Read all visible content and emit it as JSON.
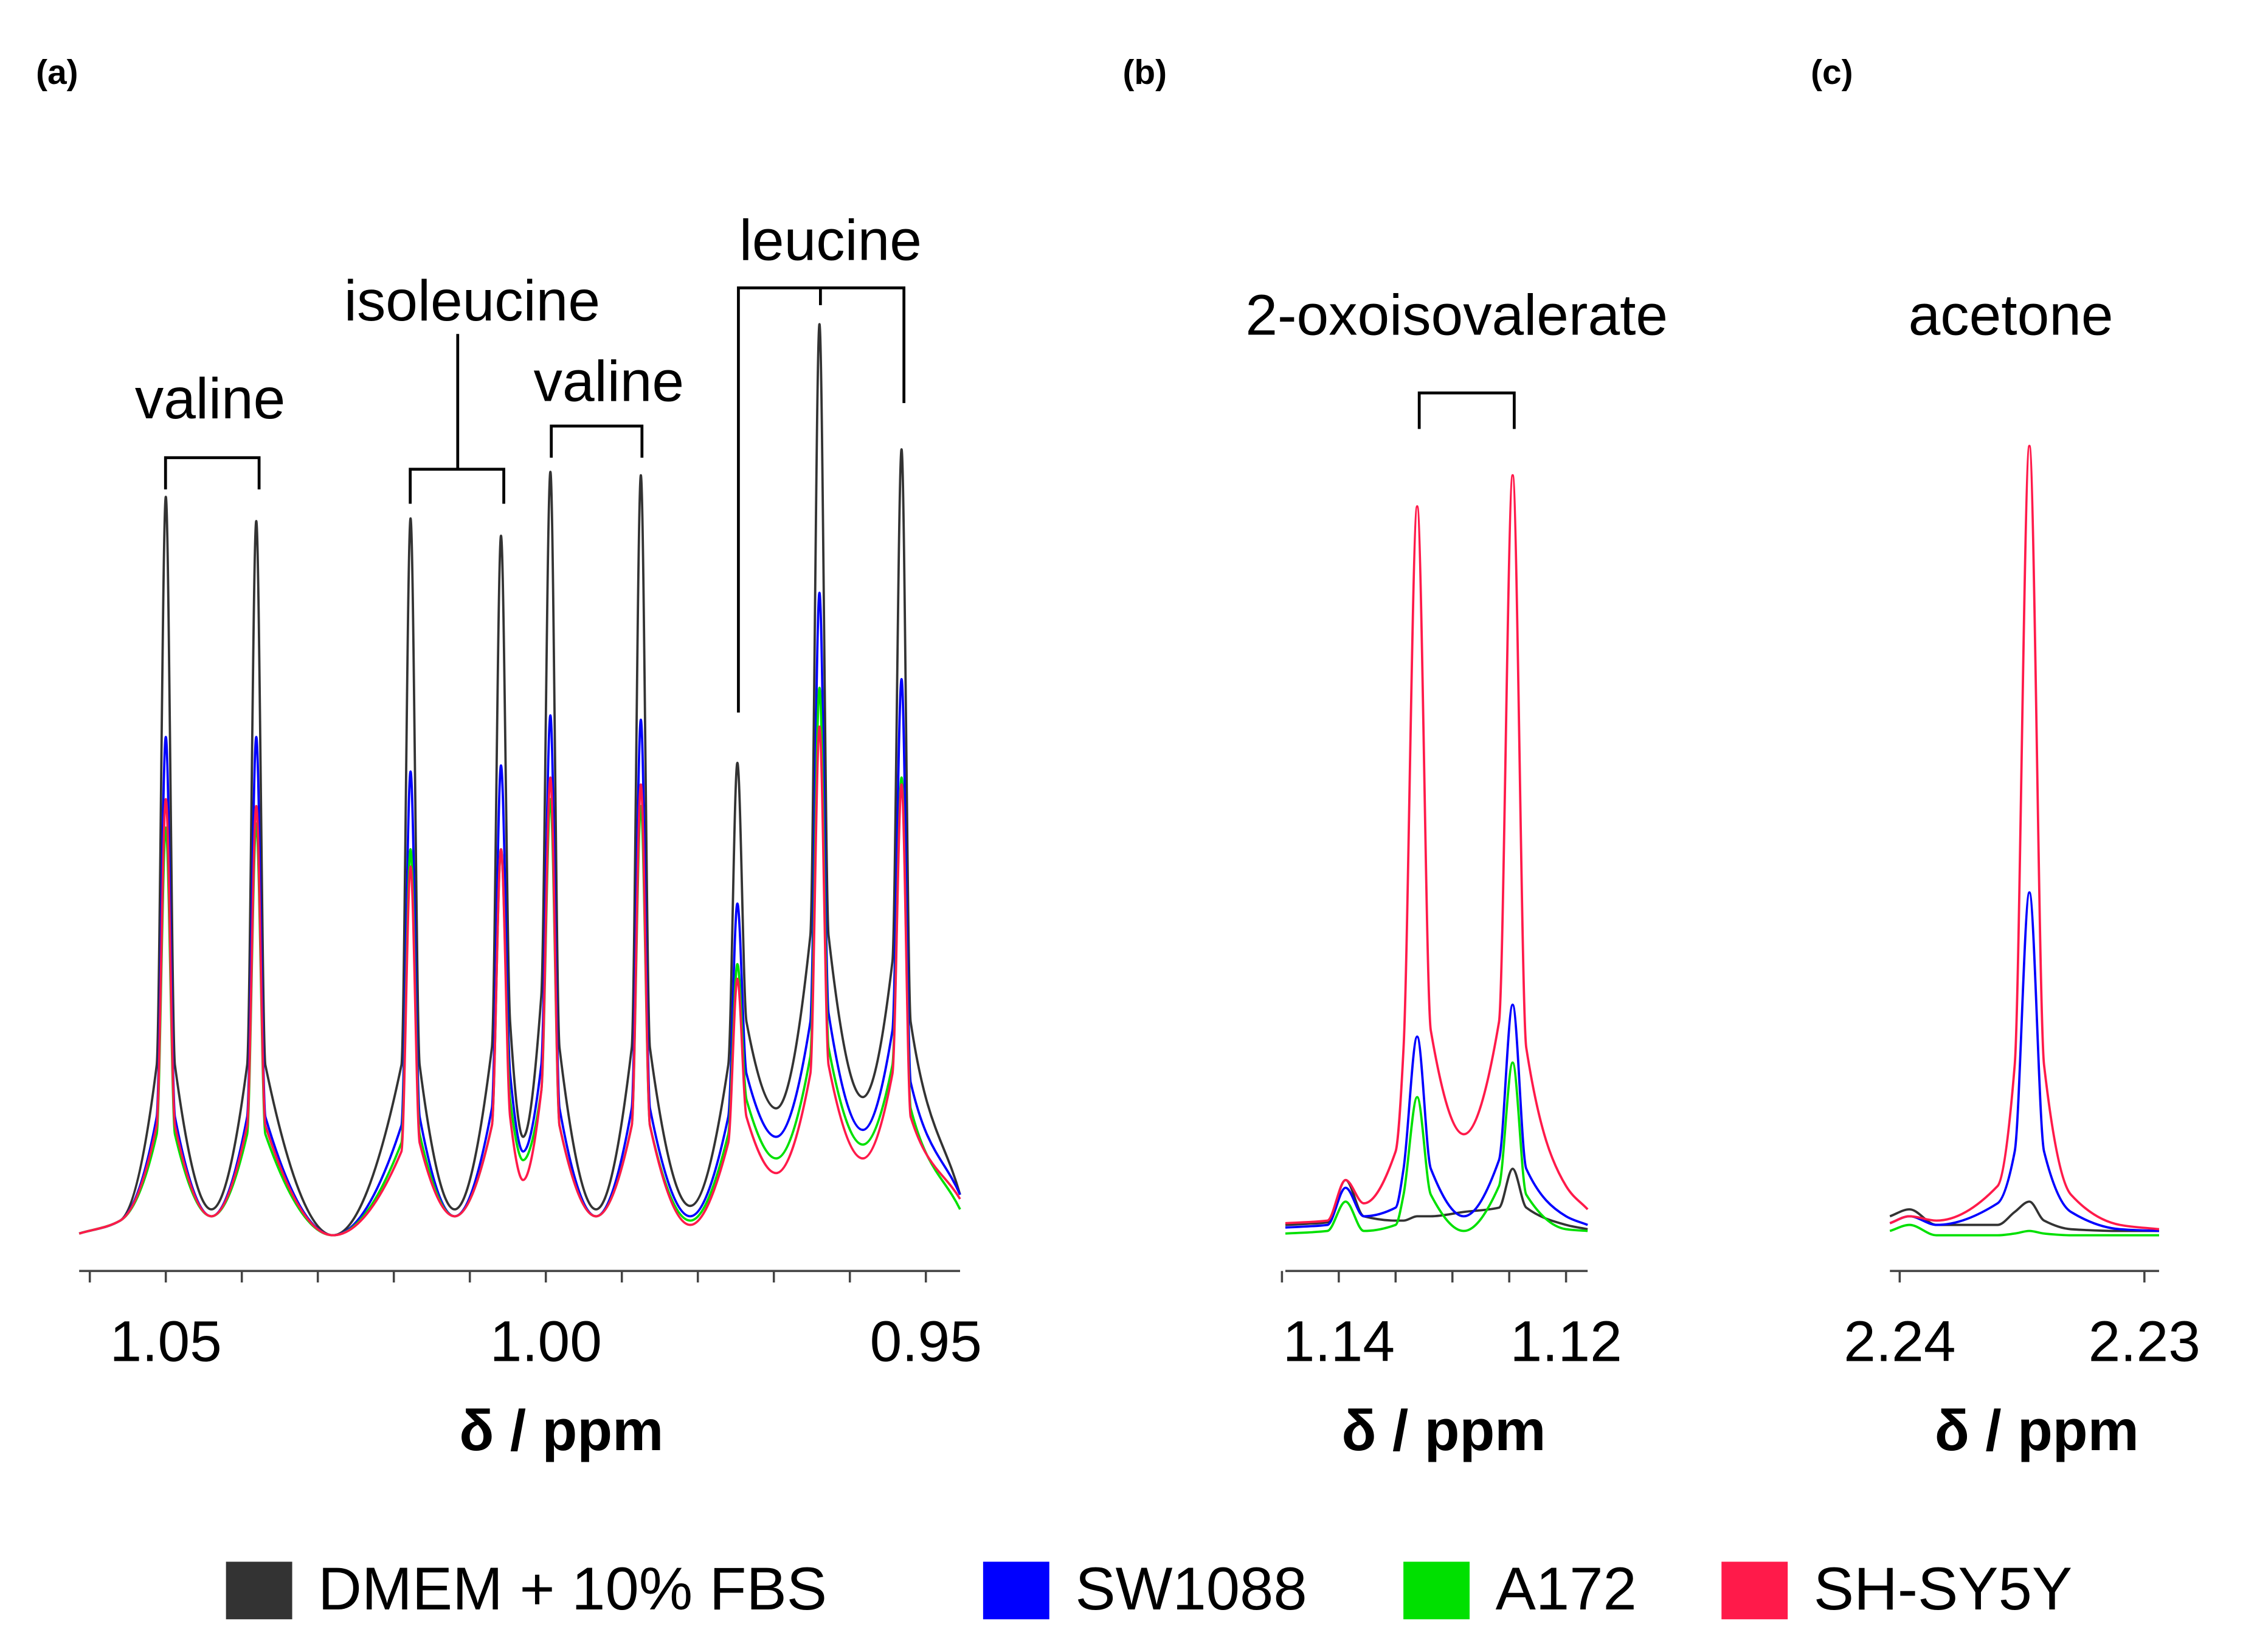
{
  "chart_data": [
    {
      "type": "line",
      "title": "(a)",
      "xlabel": "δ / ppm",
      "annotations": [
        "valine",
        "isoleucine",
        "valine",
        "leucine"
      ],
      "xlim": [
        1.0614,
        0.9455
      ],
      "ylim": [
        0,
        110
      ],
      "xticks": [
        1.05,
        {
          "value": 1,
          "label": "1.00"
        },
        0.95
      ],
      "xminorticks": [
        1.06,
        1.05,
        1.04,
        1.03,
        1.02,
        1.01,
        1.0,
        0.99,
        0.98,
        0.97,
        0.96,
        0.95
      ],
      "x": [
        1.0614,
        1.056,
        1.0512,
        1.05,
        1.0488,
        1.044,
        1.0393,
        1.0381,
        1.0369,
        1.028,
        1.019,
        1.0178,
        1.0166,
        1.012,
        1.0071,
        1.0059,
        1.0047,
        1.003,
        1.0006,
        0.9994,
        0.9982,
        0.9934,
        0.9887,
        0.9875,
        0.9863,
        0.981,
        0.976,
        0.9748,
        0.9736,
        0.9697,
        0.9652,
        0.964,
        0.9628,
        0.9583,
        0.9544,
        0.9532,
        0.952,
        0.9455
      ],
      "series": [
        {
          "name": "DMEM + 10% FBS",
          "color": "#333333",
          "values": [
            0.5,
            2,
            20,
            85.8,
            20,
            3.3,
            20,
            83,
            20,
            0.3,
            20,
            83.3,
            20,
            3.3,
            22,
            81.3,
            25,
            11.7,
            28,
            88.7,
            22,
            3.3,
            22,
            88.3,
            22,
            3.7,
            20,
            55,
            25,
            15,
            35,
            105.8,
            35,
            16.3,
            32,
            91.3,
            25,
            5
          ]
        },
        {
          "name": "SW1088",
          "color": "#0000ff",
          "values": [
            0.5,
            2,
            14,
            58,
            14,
            2.5,
            14,
            58,
            14,
            0.3,
            13,
            54,
            14,
            2.5,
            15,
            54.7,
            19,
            10,
            20,
            60.5,
            15,
            2.5,
            15,
            60,
            15,
            2.5,
            14,
            38.7,
            19,
            11.7,
            25,
            74.7,
            26,
            12.5,
            24,
            64.7,
            18,
            5
          ]
        },
        {
          "name": "A172",
          "color": "#00e000",
          "values": [
            0.5,
            2,
            12,
            47.5,
            12,
            2.5,
            12,
            48,
            12,
            0.3,
            11,
            45,
            12,
            2.5,
            13,
            45,
            16,
            9,
            17,
            50.8,
            13,
            2.5,
            13,
            50,
            13,
            2,
            12,
            31.7,
            16,
            9.2,
            21,
            63.7,
            22,
            10.8,
            20,
            53.3,
            15,
            3.3
          ]
        },
        {
          "name": "SH-SY5Y",
          "color": "#ff1a4a",
          "values": [
            0.5,
            2,
            13,
            50.8,
            13,
            2.5,
            13,
            50,
            13,
            0.3,
            10,
            43,
            11,
            2.5,
            13,
            45,
            14,
            6.7,
            17,
            53.3,
            13,
            2.5,
            13,
            52.5,
            13,
            1.5,
            11,
            30,
            14,
            7.5,
            19,
            59.2,
            20,
            9.2,
            19,
            52.5,
            14,
            4.5
          ]
        }
      ]
    },
    {
      "type": "line",
      "title": "(b)",
      "xlabel": "δ / ppm",
      "annotations": [
        "2-oxoisovalerate"
      ],
      "xlim": [
        1.1447,
        1.1181
      ],
      "ylim": [
        0,
        110
      ],
      "xticks": [
        1.14,
        1.12
      ],
      "xminorticks": [
        1.145,
        1.14,
        1.135,
        1.13,
        1.125,
        1.12
      ],
      "x": [
        1.1447,
        1.141,
        1.1394,
        1.1378,
        1.135,
        1.1343,
        1.1331,
        1.1319,
        1.129,
        1.1259,
        1.1247,
        1.1235,
        1.12,
        1.1181
      ],
      "series": [
        {
          "color": "#333333",
          "values": [
            1.5,
            1.8,
            6.7,
            2.5,
            2,
            2,
            2.5,
            2.5,
            3,
            3.5,
            8,
            3.5,
            1.5,
            1
          ]
        },
        {
          "color": "#0000ff",
          "values": [
            1.2,
            1.5,
            5.8,
            2.5,
            3.5,
            8,
            23.3,
            8,
            2.5,
            9,
            27,
            8,
            2.5,
            1.5
          ]
        },
        {
          "color": "#00e000",
          "values": [
            0.5,
            0.8,
            4.2,
            0.8,
            1.5,
            5,
            16.3,
            5,
            0.8,
            6,
            20.3,
            5,
            1,
            0.8
          ]
        },
        {
          "color": "#ff1a4a",
          "values": [
            1.7,
            2,
            6.7,
            4,
            10,
            22,
            84.7,
            24,
            12,
            25,
            88.3,
            22,
            6,
            3.3
          ]
        }
      ]
    },
    {
      "type": "line",
      "title": "(c)",
      "xlabel": "δ / ppm",
      "annotations": [
        "acetone"
      ],
      "xlim": [
        2.2404,
        2.2294
      ],
      "ylim": [
        0,
        110
      ],
      "xticks": [
        2.24,
        2.23
      ],
      "xminorticks": [
        2.24,
        2.23
      ],
      "x": [
        2.2404,
        2.2396,
        2.2385,
        2.236,
        2.2353,
        2.2347,
        2.2341,
        2.233,
        2.231,
        2.2294
      ],
      "series": [
        {
          "color": "#333333",
          "values": [
            2.5,
            3.3,
            1.5,
            1.5,
            3,
            4.2,
            2,
            1,
            0.8,
            0.8
          ]
        },
        {
          "color": "#0000ff",
          "values": [
            1.7,
            2.5,
            1.5,
            4,
            10,
            40,
            10,
            3,
            1,
            0.8
          ]
        },
        {
          "color": "#00e000",
          "values": [
            0.8,
            1.5,
            0.3,
            0.3,
            0.5,
            0.8,
            0.5,
            0.3,
            0.3,
            0.3
          ]
        },
        {
          "color": "#ff1a4a",
          "values": [
            1.7,
            2.5,
            2,
            6,
            20,
            91.7,
            20,
            5,
            1.5,
            1
          ]
        }
      ]
    }
  ]
}
